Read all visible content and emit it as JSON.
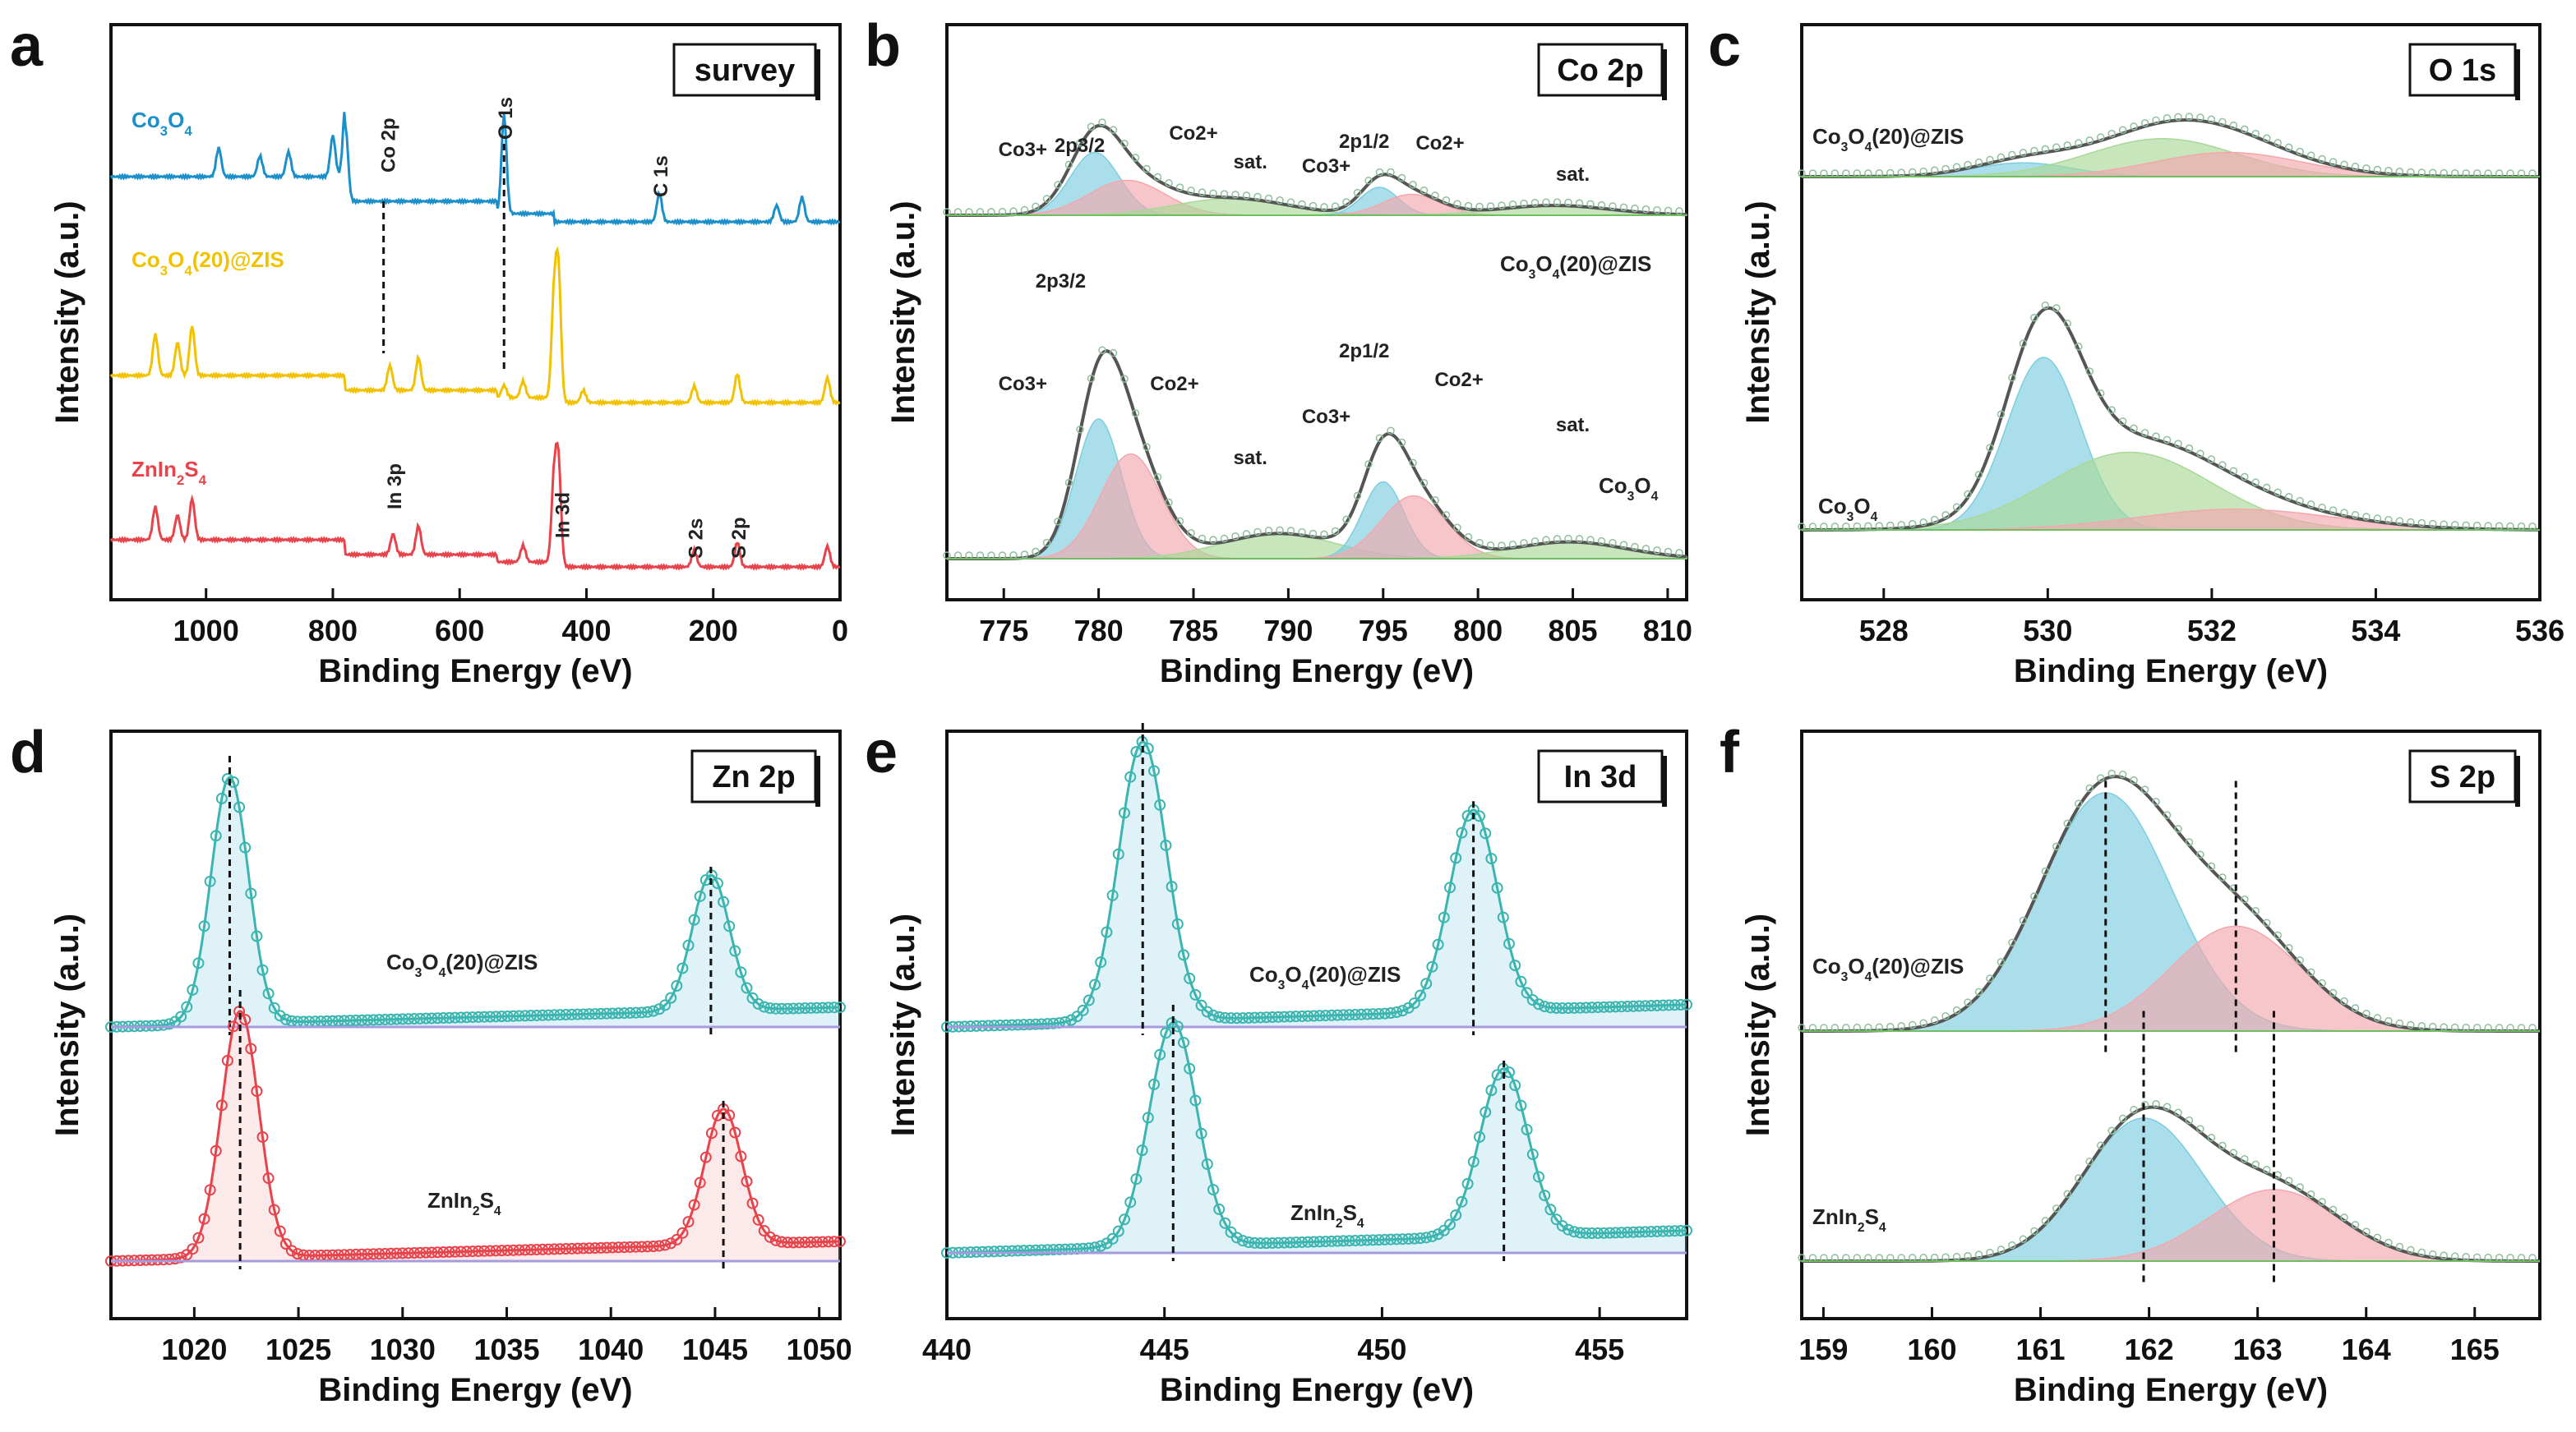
{
  "colors": {
    "blue": "#1a8fc9",
    "yellow": "#f2c200",
    "red": "#e8434b",
    "cyan_fill": "#7ccde0",
    "pink_fill": "#f3a7ad",
    "green_fill": "#a9d898",
    "purple_fill": "#b9b0de",
    "envelope": "#555555",
    "teal_line": "#3bb5b0"
  },
  "chart_data": [
    {
      "panel": "a",
      "type": "line",
      "title": "survey",
      "xlabel": "Binding Energy (eV)",
      "ylabel": "Intensity (a.u.)",
      "xlim": [
        1150,
        0
      ],
      "xticks": [
        1000,
        800,
        600,
        400,
        200,
        0
      ],
      "series": [
        {
          "name": "Co3O4",
          "label_main": "Co",
          "label_sub1": "3",
          "label_mid": "O",
          "label_sub2": "4",
          "label_tail": "",
          "color": "blue",
          "offset": 2,
          "peaks": [
            [
              980,
              0.35
            ],
            [
              915,
              0.25
            ],
            [
              870,
              0.3
            ],
            [
              800,
              0.5
            ],
            [
              780,
              0.9
            ],
            [
              530,
              1.2
            ],
            [
              285,
              0.35
            ],
            [
              100,
              0.2
            ],
            [
              60,
              0.3
            ]
          ],
          "annotations": [
            "Co 2p",
            "O 1s",
            "C 1s"
          ]
        },
        {
          "name": "Co3O4(20)@ZIS",
          "label_main": "Co",
          "label_sub1": "3",
          "label_mid": "O",
          "label_sub2": "4",
          "label_tail": "(20)@ZIS",
          "color": "yellow",
          "offset": 1,
          "peaks": [
            [
              1080,
              0.5
            ],
            [
              1045,
              0.4
            ],
            [
              1022,
              0.6
            ],
            [
              710,
              0.3
            ],
            [
              665,
              0.4
            ],
            [
              530,
              0.15
            ],
            [
              500,
              0.2
            ],
            [
              451,
              1.2
            ],
            [
              444,
              1.5
            ],
            [
              405,
              0.15
            ],
            [
              230,
              0.2
            ],
            [
              162,
              0.35
            ],
            [
              20,
              0.3
            ]
          ],
          "annotations": []
        },
        {
          "name": "ZnIn2S4",
          "label_main": "ZnIn",
          "label_sub1": "2",
          "label_mid": "S",
          "label_sub2": "4",
          "label_tail": "",
          "color": "red",
          "offset": 0,
          "peaks": [
            [
              1080,
              0.4
            ],
            [
              1045,
              0.3
            ],
            [
              1022,
              0.5
            ],
            [
              705,
              0.25
            ],
            [
              665,
              0.35
            ],
            [
              500,
              0.2
            ],
            [
              451,
              1.0
            ],
            [
              444,
              1.2
            ],
            [
              230,
              0.2
            ],
            [
              162,
              0.3
            ],
            [
              20,
              0.25
            ]
          ],
          "annotations": [
            "In 3p",
            "In 3d",
            "S 2s",
            "S 2p"
          ]
        }
      ]
    },
    {
      "panel": "b",
      "type": "line",
      "title": "Co 2p",
      "xlabel": "Binding Energy (eV)",
      "ylabel": "Intensity (a.u.)",
      "xlim": [
        772,
        811
      ],
      "xticks": [
        775,
        780,
        785,
        790,
        795,
        800,
        805,
        810
      ],
      "series": [
        {
          "name": "Co3O4(20)@ZIS",
          "label_main": "Co",
          "label_sub1": "3",
          "label_mid": "O",
          "label_sub2": "4",
          "label_tail": "(20)@ZIS",
          "components": [
            {
              "name": "Co3+ 2p3/2",
              "center": 779.8,
              "height": 0.45,
              "width": 1.3,
              "color": "cyan_fill"
            },
            {
              "name": "Co2+ 2p3/2",
              "center": 781.5,
              "height": 0.25,
              "width": 2.0,
              "color": "pink_fill"
            },
            {
              "name": "sat.",
              "center": 787,
              "height": 0.12,
              "width": 3.0,
              "color": "green_fill"
            },
            {
              "name": "Co3+ 2p1/2",
              "center": 794.8,
              "height": 0.2,
              "width": 1.0,
              "color": "cyan_fill"
            },
            {
              "name": "Co2+ 2p1/2",
              "center": 796.5,
              "height": 0.15,
              "width": 1.5,
              "color": "pink_fill"
            },
            {
              "name": "sat.",
              "center": 804,
              "height": 0.07,
              "width": 3.0,
              "color": "green_fill"
            }
          ],
          "annotations": [
            "2p3/2",
            "Co3+",
            "Co2+",
            "sat.",
            "Co3+",
            "2p1/2",
            "Co2+",
            "sat."
          ]
        },
        {
          "name": "Co3O4",
          "label_main": "Co",
          "label_sub1": "3",
          "label_mid": "O",
          "label_sub2": "4",
          "label_tail": "",
          "components": [
            {
              "name": "Co3+ 2p3/2",
              "center": 780.0,
              "height": 1.0,
              "width": 1.2,
              "color": "cyan_fill"
            },
            {
              "name": "Co2+ 2p3/2",
              "center": 781.7,
              "height": 0.75,
              "width": 1.6,
              "color": "pink_fill"
            },
            {
              "name": "sat.",
              "center": 789.5,
              "height": 0.18,
              "width": 3.0,
              "color": "green_fill"
            },
            {
              "name": "Co3+ 2p1/2",
              "center": 795.0,
              "height": 0.55,
              "width": 1.1,
              "color": "cyan_fill"
            },
            {
              "name": "Co2+ 2p1/2",
              "center": 796.6,
              "height": 0.45,
              "width": 1.7,
              "color": "pink_fill"
            },
            {
              "name": "sat.",
              "center": 804.8,
              "height": 0.12,
              "width": 3.0,
              "color": "green_fill"
            }
          ],
          "annotations": [
            "2p3/2",
            "Co3+",
            "Co2+",
            "sat.",
            "Co3+",
            "2p1/2",
            "Co2+",
            "sat."
          ]
        }
      ]
    },
    {
      "panel": "c",
      "type": "line",
      "title": "O 1s",
      "xlabel": "Binding Energy (eV)",
      "ylabel": "Intensity (a.u.)",
      "xlim": [
        527,
        536
      ],
      "xticks": [
        528,
        530,
        532,
        534,
        536
      ],
      "series": [
        {
          "name": "Co3O4(20)@ZIS",
          "label_main": "Co",
          "label_sub1": "3",
          "label_mid": "O",
          "label_sub2": "4",
          "label_tail": "(20)@ZIS",
          "components": [
            {
              "center": 529.7,
              "height": 0.08,
              "width": 0.6,
              "color": "cyan_fill"
            },
            {
              "center": 531.4,
              "height": 0.22,
              "width": 0.9,
              "color": "green_fill"
            },
            {
              "center": 532.2,
              "height": 0.14,
              "width": 0.9,
              "color": "pink_fill"
            }
          ]
        },
        {
          "name": "Co3O4",
          "label_main": "Co",
          "label_sub1": "3",
          "label_mid": "O",
          "label_sub2": "4",
          "label_tail": "",
          "components": [
            {
              "center": 529.95,
              "height": 1.0,
              "width": 0.45,
              "color": "cyan_fill"
            },
            {
              "center": 531.0,
              "height": 0.45,
              "width": 1.0,
              "color": "green_fill"
            },
            {
              "center": 532.3,
              "height": 0.12,
              "width": 1.2,
              "color": "pink_fill"
            }
          ]
        }
      ]
    },
    {
      "panel": "d",
      "type": "line",
      "title": "Zn 2p",
      "xlabel": "Binding Energy (eV)",
      "ylabel": "Intensity (a.u.)",
      "xlim": [
        1016,
        1051
      ],
      "xticks": [
        1020,
        1025,
        1030,
        1035,
        1040,
        1045,
        1050
      ],
      "series": [
        {
          "name": "Co3O4(20)@ZIS",
          "label_main": "Co",
          "label_sub1": "3",
          "label_mid": "O",
          "label_sub2": "4",
          "label_tail": "(20)@ZIS",
          "peaks": [
            [
              1021.7,
              1.0
            ],
            [
              1044.8,
              0.55
            ]
          ],
          "peak_width": 0.9,
          "line_color": "teal_line",
          "fill_color": "cyan_fill"
        },
        {
          "name": "ZnIn2S4",
          "label_main": "ZnIn",
          "label_sub1": "2",
          "label_mid": "S",
          "label_sub2": "4",
          "label_tail": "",
          "peaks": [
            [
              1022.2,
              1.0
            ],
            [
              1045.4,
              0.55
            ]
          ],
          "peak_width": 0.9,
          "line_color": "red",
          "fill_color": "pink_fill"
        }
      ]
    },
    {
      "panel": "e",
      "type": "line",
      "title": "In 3d",
      "xlabel": "Binding Energy (eV)",
      "ylabel": "Intensity (a.u.)",
      "xlim": [
        440,
        457
      ],
      "xticks": [
        440,
        445,
        450,
        455
      ],
      "series": [
        {
          "name": "Co3O4(20)@ZIS",
          "label_main": "Co",
          "label_sub1": "3",
          "label_mid": "O",
          "label_sub2": "4",
          "label_tail": "(20)@ZIS",
          "peaks": [
            [
              444.5,
              1.0
            ],
            [
              452.1,
              0.72
            ]
          ],
          "peak_width": 0.55
        },
        {
          "name": "ZnIn2S4",
          "label_main": "ZnIn",
          "label_sub1": "2",
          "label_mid": "S",
          "label_sub2": "4",
          "label_tail": "",
          "peaks": [
            [
              445.2,
              0.8
            ],
            [
              452.8,
              0.6
            ]
          ],
          "peak_width": 0.55
        }
      ]
    },
    {
      "panel": "f",
      "type": "line",
      "title": "S 2p",
      "xlabel": "Binding Energy (eV)",
      "ylabel": "Intensity (a.u.)",
      "xlim": [
        158.8,
        165.6
      ],
      "xticks": [
        159,
        160,
        161,
        162,
        163,
        164,
        165
      ],
      "series": [
        {
          "name": "Co3O4(20)@ZIS",
          "label_main": "Co",
          "label_sub1": "3",
          "label_mid": "O",
          "label_sub2": "4",
          "label_tail": "(20)@ZIS",
          "components": [
            {
              "center": 161.6,
              "height": 1.0,
              "width": 0.6,
              "color": "cyan_fill"
            },
            {
              "center": 162.8,
              "height": 0.44,
              "width": 0.6,
              "color": "pink_fill"
            }
          ],
          "dashed_lines": [
            161.6,
            162.8
          ]
        },
        {
          "name": "ZnIn2S4",
          "label_main": "ZnIn",
          "label_sub1": "2",
          "label_mid": "S",
          "label_sub2": "4",
          "label_tail": "",
          "components": [
            {
              "center": 161.95,
              "height": 0.6,
              "width": 0.55,
              "color": "cyan_fill"
            },
            {
              "center": 163.15,
              "height": 0.3,
              "width": 0.6,
              "color": "pink_fill"
            }
          ],
          "dashed_lines": [
            161.95,
            163.15
          ]
        }
      ]
    }
  ]
}
